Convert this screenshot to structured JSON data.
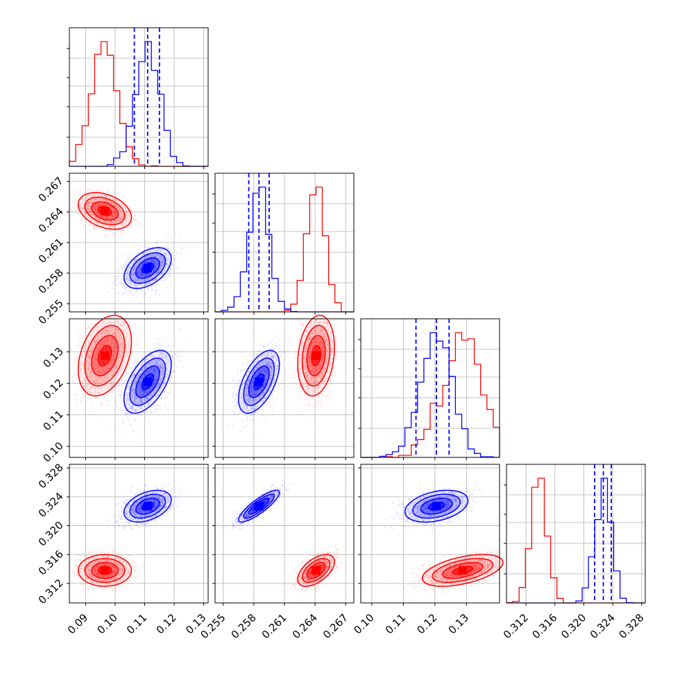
{
  "chart_data": {
    "type": "corner",
    "title": "",
    "xlabel": "",
    "ylabel": "",
    "grid": true,
    "legend": "none",
    "colors": {
      "series_a": "#ff0000",
      "series_b": "#0000ff",
      "grid": "#b0b0b0"
    },
    "series": [
      {
        "color": "#ff0000",
        "means": [
          0.0965,
          0.2641,
          0.1288,
          0.3138
        ],
        "stds": [
          0.0045,
          0.0009,
          0.0064,
          0.0011
        ],
        "covariance_note": "",
        "correlation": [
          [
            1,
            -0.35,
            0.35,
            0.0
          ],
          [
            -0.35,
            1,
            0.2,
            0.55
          ],
          [
            0.35,
            0.2,
            1,
            0.5
          ],
          [
            0.0,
            0.55,
            0.5,
            1
          ]
        ]
      },
      {
        "color": "#0000ff",
        "means": [
          0.111,
          0.2585,
          0.1205,
          0.3227
        ],
        "stds": [
          0.004,
          0.001,
          0.005,
          0.0011
        ],
        "correlation": [
          [
            1,
            0.45,
            0.55,
            0.4
          ],
          [
            0.45,
            1,
            0.55,
            0.85
          ],
          [
            0.55,
            0.55,
            1,
            0.35
          ],
          [
            0.4,
            0.85,
            0.35,
            1
          ]
        ],
        "quantiles": [
          [
            0.1065,
            0.111,
            0.115
          ],
          [
            0.2575,
            0.2585,
            0.2595
          ],
          [
            0.114,
            0.1205,
            0.1245
          ],
          [
            0.3215,
            0.3227,
            0.3238
          ]
        ]
      }
    ],
    "ranges": [
      [
        0.0845,
        0.1315
      ],
      [
        0.2542,
        0.2678
      ],
      [
        0.0965,
        0.1405
      ],
      [
        0.3093,
        0.3285
      ]
    ],
    "tick_labels": [
      [
        "0.09",
        "0.10",
        "0.11",
        "0.12",
        "0.13"
      ],
      [
        "0.255",
        "0.258",
        "0.261",
        "0.264",
        "0.267"
      ],
      [
        "0.10",
        "0.11",
        "0.12",
        "0.13"
      ],
      [
        "0.312",
        "0.316",
        "0.320",
        "0.324",
        "0.328"
      ]
    ],
    "ticks": [
      [
        0.09,
        0.1,
        0.11,
        0.12,
        0.13
      ],
      [
        0.255,
        0.258,
        0.261,
        0.264,
        0.267
      ],
      [
        0.1,
        0.11,
        0.12,
        0.13
      ],
      [
        0.312,
        0.316,
        0.32,
        0.324,
        0.328
      ]
    ]
  }
}
